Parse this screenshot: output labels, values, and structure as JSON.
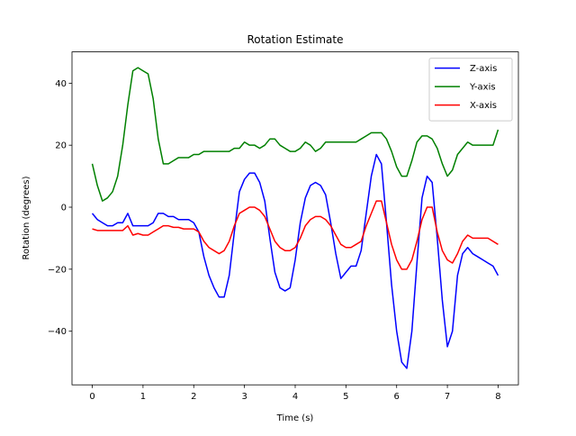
{
  "chart_data": {
    "type": "line",
    "title": "Rotation Estimate",
    "xlabel": "Time (s)",
    "ylabel": "Rotation (degrees)",
    "x": [
      0,
      0.1,
      0.2,
      0.3,
      0.4,
      0.5,
      0.6,
      0.7,
      0.8,
      0.9,
      1,
      1.1,
      1.2,
      1.3,
      1.4,
      1.5,
      1.6,
      1.7,
      1.8,
      1.9,
      2,
      2.1,
      2.2,
      2.3,
      2.4,
      2.5,
      2.6,
      2.7,
      2.8,
      2.9,
      3,
      3.1,
      3.2,
      3.3,
      3.4,
      3.5,
      3.6,
      3.7,
      3.8,
      3.9,
      4,
      4.1,
      4.2,
      4.3,
      4.4,
      4.5,
      4.6,
      4.7,
      4.8,
      4.9,
      5,
      5.1,
      5.2,
      5.3,
      5.4,
      5.5,
      5.6,
      5.7,
      5.8,
      5.9,
      6,
      6.1,
      6.2,
      6.3,
      6.4,
      6.5,
      6.6,
      6.7,
      6.8,
      6.9,
      7,
      7.1,
      7.2,
      7.3,
      7.4,
      7.5,
      7.6,
      7.7,
      7.8,
      7.9,
      8
    ],
    "series": [
      {
        "name": "Z-axis",
        "color": "#0000ff",
        "values": [
          -2,
          -4,
          -5,
          -6,
          -6,
          -5,
          -5,
          -2,
          -6,
          -6,
          -6,
          -6,
          -5,
          -2,
          -2,
          -3,
          -3,
          -4,
          -4,
          -4,
          -5,
          -8,
          -16,
          -22,
          -26,
          -29,
          -29,
          -22,
          -8,
          5,
          9,
          11,
          11,
          8,
          2,
          -10,
          -21,
          -26,
          -27,
          -26,
          -17,
          -5,
          3,
          7,
          8,
          7,
          4,
          -5,
          -15,
          -23,
          -21,
          -19,
          -19,
          -14,
          -2,
          10,
          17,
          14,
          -5,
          -25,
          -40,
          -50,
          -52,
          -40,
          -18,
          3,
          10,
          8,
          -10,
          -30,
          -45,
          -40,
          -22,
          -15,
          -13,
          -15,
          -16,
          -17,
          -18,
          -19,
          -22
        ]
      },
      {
        "name": "Y-axis",
        "color": "#008000",
        "values": [
          14,
          7,
          2,
          3,
          5,
          10,
          20,
          33,
          44,
          45,
          44,
          43,
          35,
          22,
          14,
          14,
          15,
          16,
          16,
          16,
          17,
          17,
          18,
          18,
          18,
          18,
          18,
          18,
          19,
          19,
          21,
          20,
          20,
          19,
          20,
          22,
          22,
          20,
          19,
          18,
          18,
          19,
          21,
          20,
          18,
          19,
          21,
          21,
          21,
          21,
          21,
          21,
          21,
          22,
          23,
          24,
          24,
          24,
          22,
          18,
          13,
          10,
          10,
          15,
          21,
          23,
          23,
          22,
          19,
          14,
          10,
          12,
          17,
          19,
          21,
          20,
          20,
          20,
          20,
          20,
          25
        ]
      },
      {
        "name": "X-axis",
        "color": "#ff0000",
        "values": [
          -7,
          -7.5,
          -7.5,
          -7.5,
          -7.5,
          -7.5,
          -7.5,
          -6,
          -9,
          -8.5,
          -9,
          -9,
          -8,
          -7,
          -6,
          -6,
          -6.5,
          -6.5,
          -7,
          -7,
          -7,
          -8,
          -11,
          -13,
          -14,
          -15,
          -14,
          -11,
          -6,
          -2,
          -1,
          0,
          0,
          -1,
          -3,
          -7,
          -11,
          -13,
          -14,
          -14,
          -13,
          -10,
          -6,
          -4,
          -3,
          -3,
          -4,
          -6,
          -9,
          -12,
          -13,
          -13,
          -12,
          -11,
          -6,
          -2,
          2,
          2,
          -5,
          -12,
          -17,
          -20,
          -20,
          -17,
          -11,
          -4,
          0,
          0,
          -8,
          -14,
          -17,
          -18,
          -15,
          -11,
          -9,
          -10,
          -10,
          -10,
          -10,
          -11,
          -12
        ]
      }
    ],
    "xlim": [
      -0.4,
      8.4
    ],
    "ylim": [
      -57.3,
      50.1
    ],
    "xticks": [
      0,
      1,
      2,
      3,
      4,
      5,
      6,
      7,
      8
    ],
    "yticks": [
      {
        "value": -40,
        "label": "−40"
      },
      {
        "value": -20,
        "label": "−20"
      },
      0,
      20,
      40
    ],
    "legend": "upper right"
  }
}
